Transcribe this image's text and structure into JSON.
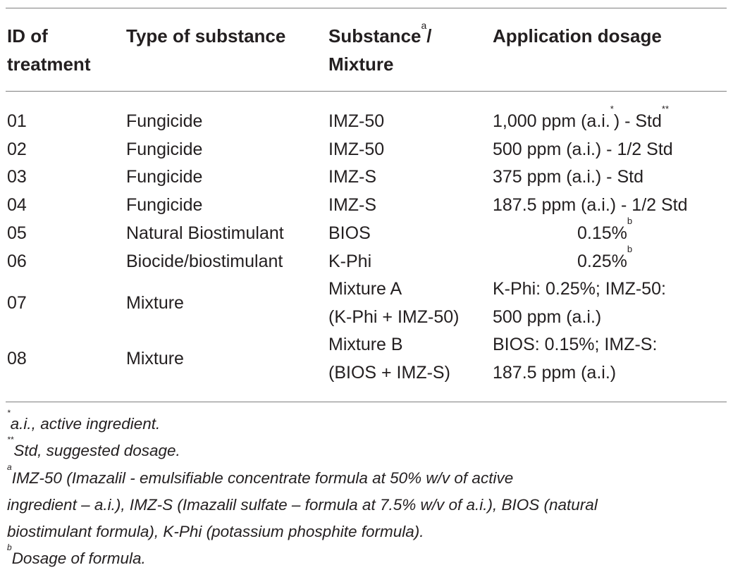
{
  "header": {
    "col1_line1": "ID of",
    "col1_line2": "treatment",
    "col2": "Type of substance",
    "col3_line1": "Substance",
    "col3_sup": "a",
    "col3_line1_suffix": "/",
    "col3_line2": "Mixture",
    "col4": "Application dosage"
  },
  "rows": [
    {
      "id": "01",
      "type": "Fungicide",
      "substance": "IMZ-50",
      "dosage": "1,000 ppm (a.i.",
      "dosage_sup1": "*",
      "dosage_mid": ") - Std",
      "dosage_sup2": "**"
    },
    {
      "id": "02",
      "type": "Fungicide",
      "substance": "IMZ-50",
      "dosage": "500 ppm (a.i.) - 1/2 Std"
    },
    {
      "id": "03",
      "type": "Fungicide",
      "substance": "IMZ-S",
      "dosage": "375 ppm (a.i.) - Std"
    },
    {
      "id": "04",
      "type": "Fungicide",
      "substance": "IMZ-S",
      "dosage": "187.5 ppm (a.i.) - 1/2 Std"
    },
    {
      "id": "05",
      "type": "Natural Biostimulant",
      "substance": "BIOS",
      "dosage": "0.15%",
      "dosage_sup": "b"
    },
    {
      "id": "06",
      "type": "Biocide/biostimulant",
      "substance": "K-Phi",
      "dosage": "0.25%",
      "dosage_sup": "b"
    },
    {
      "id": "07",
      "type": "Mixture",
      "substance_line1": "Mixture A",
      "substance_line2": "(K-Phi + IMZ-50)",
      "dosage_line1": "K-Phi: 0.25%; IMZ-50:",
      "dosage_line2": "500 ppm (a.i.)"
    },
    {
      "id": "08",
      "type": "Mixture",
      "substance_line1": "Mixture B",
      "substance_line2": "(BIOS + IMZ-S)",
      "dosage_line1": "BIOS: 0.15%; IMZ-S:",
      "dosage_line2": "187.5 ppm (a.i.)"
    }
  ],
  "footnotes": {
    "n1_mark": "*",
    "n1_text": "a.i., active ingredient.",
    "n2_mark": "**",
    "n2_text": "Std, suggested dosage.",
    "n3_mark": "a",
    "n3_line1": "IMZ-50 (Imazalil - emulsifiable concentrate formula at 50% w/v of active",
    "n3_line2": "ingredient – a.i.), IMZ-S (Imazalil sulfate – formula at 7.5% w/v of a.i.), BIOS (natural",
    "n3_line3": "biostimulant formula), K-Phi (potassium phosphite formula).",
    "n4_mark": "b",
    "n4_text": "Dosage of formula."
  }
}
